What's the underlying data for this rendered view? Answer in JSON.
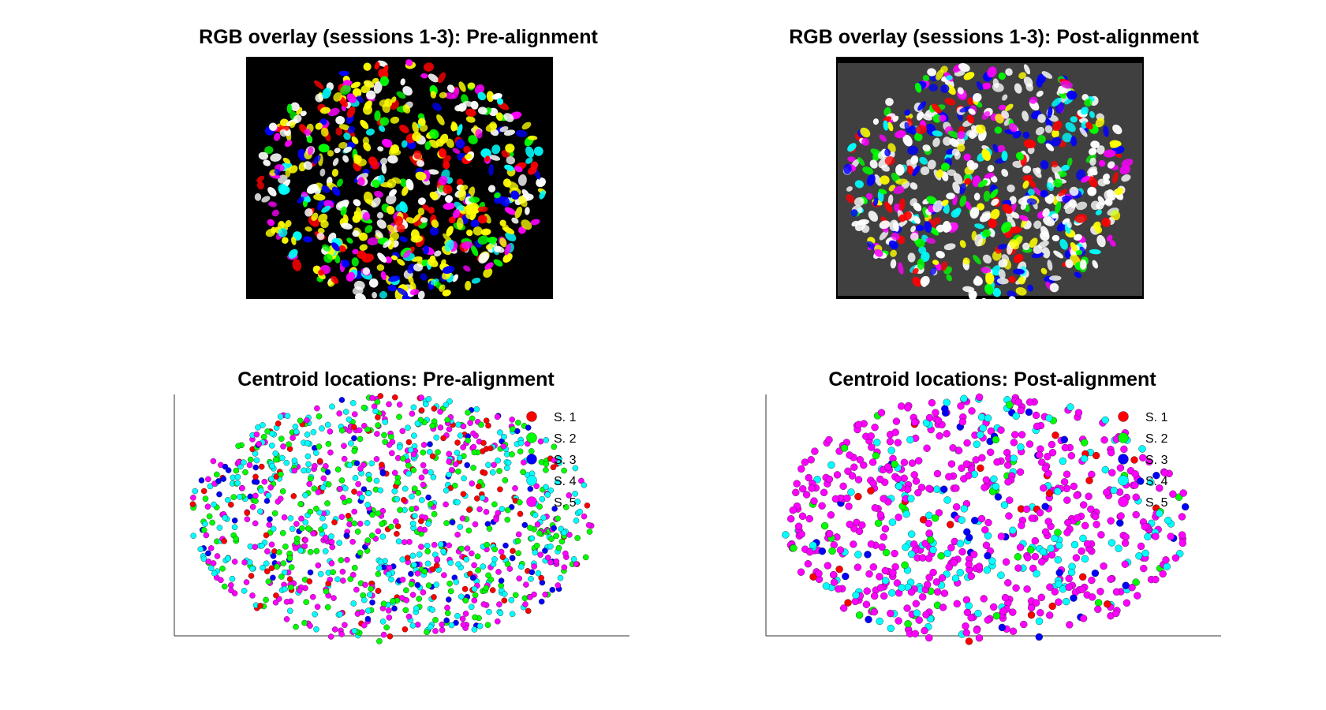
{
  "titles": {
    "rgb_pre": "RGB overlay (sessions 1-3): Pre-alignment",
    "rgb_post": "RGB overlay (sessions 1-3): Post-alignment",
    "centroid_pre": "Centroid locations: Pre-alignment",
    "centroid_post": "Centroid locations: Post-alignment"
  },
  "colors": {
    "session_1": "#ff0000",
    "session_2": "#00ff00",
    "session_3": "#0000ff",
    "session_4": "#00ffff",
    "session_5": "#ff00ff",
    "overlay_pre_background": "#000000",
    "overlay_post_background": "#404040"
  },
  "chart_data": [
    {
      "type": "image",
      "title": "RGB overlay (sessions 1-3): Pre-alignment",
      "channels": [
        "session 1 (red)",
        "session 2 (green)",
        "session 3 (blue)"
      ]
    },
    {
      "type": "image",
      "title": "RGB overlay (sessions 1-3): Post-alignment",
      "channels": [
        "session 1 (red)",
        "session 2 (green)",
        "session 3 (blue)"
      ]
    },
    {
      "type": "scatter",
      "title": "Centroid locations: Pre-alignment",
      "xlabel": "",
      "ylabel": "",
      "grid": false,
      "legend_position": "top-right",
      "series": [
        {
          "name": "S. 1",
          "color": "#ff0000"
        },
        {
          "name": "S. 2",
          "color": "#00ff00"
        },
        {
          "name": "S. 3",
          "color": "#0000ff"
        },
        {
          "name": "S. 4",
          "color": "#00ffff"
        },
        {
          "name": "S. 5",
          "color": "#ff00ff"
        }
      ]
    },
    {
      "type": "scatter",
      "title": "Centroid locations: Post-alignment",
      "xlabel": "",
      "ylabel": "",
      "grid": false,
      "legend_position": "top-right",
      "series": [
        {
          "name": "S. 1",
          "color": "#ff0000"
        },
        {
          "name": "S. 2",
          "color": "#00ff00"
        },
        {
          "name": "S. 3",
          "color": "#0000ff"
        },
        {
          "name": "S. 4",
          "color": "#00ffff"
        },
        {
          "name": "S. 5",
          "color": "#ff00ff"
        }
      ]
    }
  ]
}
